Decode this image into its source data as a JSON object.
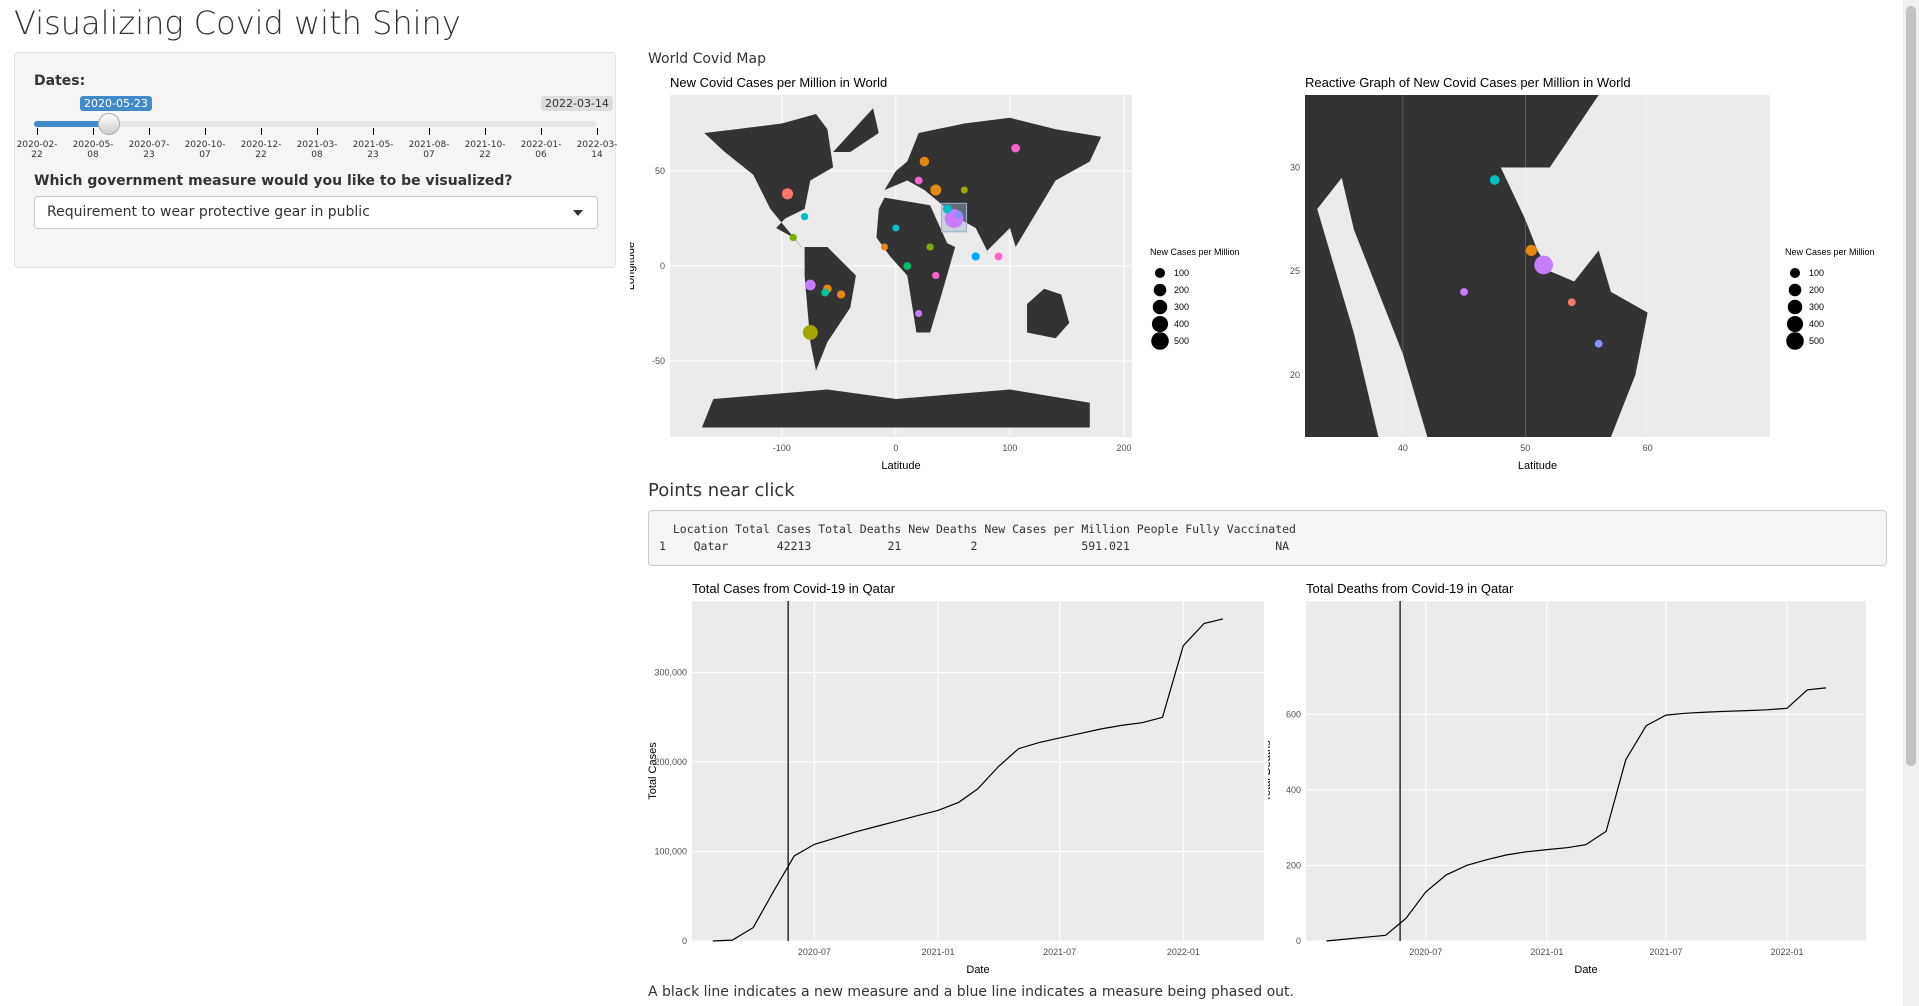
{
  "app": {
    "title": "Visualizing Covid with Shiny"
  },
  "sidebar": {
    "dates_label": "Dates:",
    "slider": {
      "selected_label": "2020-05-23",
      "max_label": "2022-03-14",
      "position_fraction": 0.136,
      "ticks": [
        "2020-02-22",
        "2020-05-08",
        "2020-07-23",
        "2020-10-07",
        "2020-12-22",
        "2021-03-08",
        "2021-05-23",
        "2021-08-07",
        "2021-10-22",
        "2022-01-06",
        "2022-03-14"
      ]
    },
    "measure_label": "Which government measure would you like to be visualized?",
    "measure_select": {
      "value": "Requirement to wear protective gear in public"
    }
  },
  "main": {
    "world_map_heading": "World Covid Map",
    "points_heading": "Points near click",
    "points_table": {
      "header": "  Location Total Cases Total Deaths New Deaths New Cases per Million People Fully Vaccinated",
      "row": "1    Qatar       42213           21          2               591.021                     NA"
    },
    "footnote": "A black line indicates a new measure and a blue line indicates a measure being phased out."
  },
  "colors": {
    "accent": "#428bca",
    "land": "#333333",
    "panel": "#ebebeb"
  },
  "chart_data": [
    {
      "type": "scatter",
      "title": "New Covid Cases per Million in World",
      "xlabel": "Latitude",
      "ylabel": "Longitude",
      "xticks": [
        "-100",
        "0",
        "100",
        "200"
      ],
      "yticks": [
        "50",
        "0",
        "-50"
      ],
      "legend_title": "New Cases per Million",
      "legend_entries": [
        "100",
        "200",
        "300",
        "400",
        "500"
      ],
      "legend_position": "right",
      "points": [
        {
          "x": -75,
          "y": -35,
          "size": 330,
          "color": "#a3a500"
        },
        {
          "x": 51,
          "y": 25,
          "size": 591,
          "color": "#c77cff"
        },
        {
          "x": -95,
          "y": 38,
          "size": 140,
          "color": "#f8766d"
        },
        {
          "x": -75,
          "y": -10,
          "size": 120,
          "color": "#c77cff"
        },
        {
          "x": -60,
          "y": -12,
          "size": 60,
          "color": "#e68613"
        },
        {
          "x": -48,
          "y": -15,
          "size": 50,
          "color": "#e68613"
        },
        {
          "x": -62,
          "y": -14,
          "size": 40,
          "color": "#00c19a"
        },
        {
          "x": 10,
          "y": 0,
          "size": 40,
          "color": "#00be67"
        },
        {
          "x": 35,
          "y": 40,
          "size": 130,
          "color": "#e68613"
        },
        {
          "x": 25,
          "y": 55,
          "size": 80,
          "color": "#e68613"
        },
        {
          "x": 105,
          "y": 62,
          "size": 60,
          "color": "#ff61cc"
        },
        {
          "x": 70,
          "y": 5,
          "size": 50,
          "color": "#00a9ff"
        },
        {
          "x": 90,
          "y": 5,
          "size": 40,
          "color": "#ff61cc"
        },
        {
          "x": 45,
          "y": 30,
          "size": 60,
          "color": "#00bfc4"
        },
        {
          "x": 55,
          "y": 27,
          "size": 40,
          "color": "#8494ff"
        },
        {
          "x": -80,
          "y": 26,
          "size": 30,
          "color": "#00bfc4"
        },
        {
          "x": -90,
          "y": 15,
          "size": 30,
          "color": "#7cae00"
        },
        {
          "x": 20,
          "y": 45,
          "size": 40,
          "color": "#ff61cc"
        },
        {
          "x": 30,
          "y": 10,
          "size": 30,
          "color": "#7cae00"
        },
        {
          "x": -10,
          "y": 10,
          "size": 25,
          "color": "#e68613"
        },
        {
          "x": 35,
          "y": -5,
          "size": 30,
          "color": "#ff61cc"
        },
        {
          "x": 20,
          "y": -25,
          "size": 25,
          "color": "#c77cff"
        },
        {
          "x": 0,
          "y": 20,
          "size": 25,
          "color": "#00bfc4"
        },
        {
          "x": 60,
          "y": 40,
          "size": 25,
          "color": "#a3a500"
        }
      ]
    },
    {
      "type": "scatter",
      "title": "Reactive Graph of New Covid Cases per Million in World",
      "xlabel": "Latitude",
      "ylabel": "Longitude",
      "xticks": [
        "40",
        "50",
        "60"
      ],
      "yticks": [
        "30",
        "25",
        "20"
      ],
      "legend_title": "New Cases per Million",
      "legend_entries": [
        "100",
        "200",
        "300",
        "400",
        "500"
      ],
      "legend_position": "right",
      "points": [
        {
          "x": 51.5,
          "y": 25.3,
          "size": 591,
          "color": "#c77cff"
        },
        {
          "x": 50.5,
          "y": 26.0,
          "size": 140,
          "color": "#e68613"
        },
        {
          "x": 47.5,
          "y": 29.4,
          "size": 90,
          "color": "#00bfc4"
        },
        {
          "x": 45.0,
          "y": 24.0,
          "size": 40,
          "color": "#c77cff"
        },
        {
          "x": 53.8,
          "y": 23.5,
          "size": 40,
          "color": "#f8766d"
        },
        {
          "x": 56.0,
          "y": 21.5,
          "size": 40,
          "color": "#8494ff"
        }
      ]
    },
    {
      "type": "line",
      "title": "Total Cases from Covid-19 in Qatar",
      "xlabel": "Date",
      "ylabel": "Total Cases",
      "xticks": [
        "2020-07",
        "2021-01",
        "2021-07",
        "2022-01"
      ],
      "yticks": [
        "0",
        "100,000",
        "200,000",
        "300,000"
      ],
      "ylim": [
        0,
        380000
      ],
      "x": [
        "2020-02",
        "2020-03",
        "2020-04",
        "2020-05",
        "2020-06",
        "2020-07",
        "2020-08",
        "2020-09",
        "2020-10",
        "2020-11",
        "2020-12",
        "2021-01",
        "2021-02",
        "2021-03",
        "2021-04",
        "2021-05",
        "2021-06",
        "2021-07",
        "2021-08",
        "2021-09",
        "2021-10",
        "2021-11",
        "2021-12",
        "2022-01",
        "2022-02",
        "2022-03"
      ],
      "values": [
        0,
        1000,
        15000,
        55000,
        95000,
        108000,
        115000,
        122000,
        128000,
        134000,
        140000,
        146000,
        155000,
        170000,
        195000,
        215000,
        222000,
        227000,
        232000,
        237000,
        241000,
        244000,
        250000,
        330000,
        355000,
        360000
      ],
      "vline": "2020-05-23"
    },
    {
      "type": "line",
      "title": "Total Deaths from Covid-19 in Qatar",
      "xlabel": "Date",
      "ylabel": "Total Deaths",
      "xticks": [
        "2020-07",
        "2021-01",
        "2021-07",
        "2022-01"
      ],
      "yticks": [
        "0",
        "200",
        "400",
        "600"
      ],
      "ylim": [
        0,
        900
      ],
      "x": [
        "2020-02",
        "2020-03",
        "2020-04",
        "2020-05",
        "2020-06",
        "2020-07",
        "2020-08",
        "2020-09",
        "2020-10",
        "2020-11",
        "2020-12",
        "2021-01",
        "2021-02",
        "2021-03",
        "2021-04",
        "2021-05",
        "2021-06",
        "2021-07",
        "2021-08",
        "2021-09",
        "2021-10",
        "2021-11",
        "2021-12",
        "2022-01",
        "2022-02",
        "2022-03"
      ],
      "values": [
        0,
        5,
        10,
        15,
        60,
        130,
        175,
        200,
        215,
        228,
        236,
        242,
        247,
        255,
        290,
        480,
        570,
        598,
        603,
        606,
        608,
        610,
        612,
        616,
        665,
        670
      ],
      "vline": "2020-05-23"
    }
  ]
}
